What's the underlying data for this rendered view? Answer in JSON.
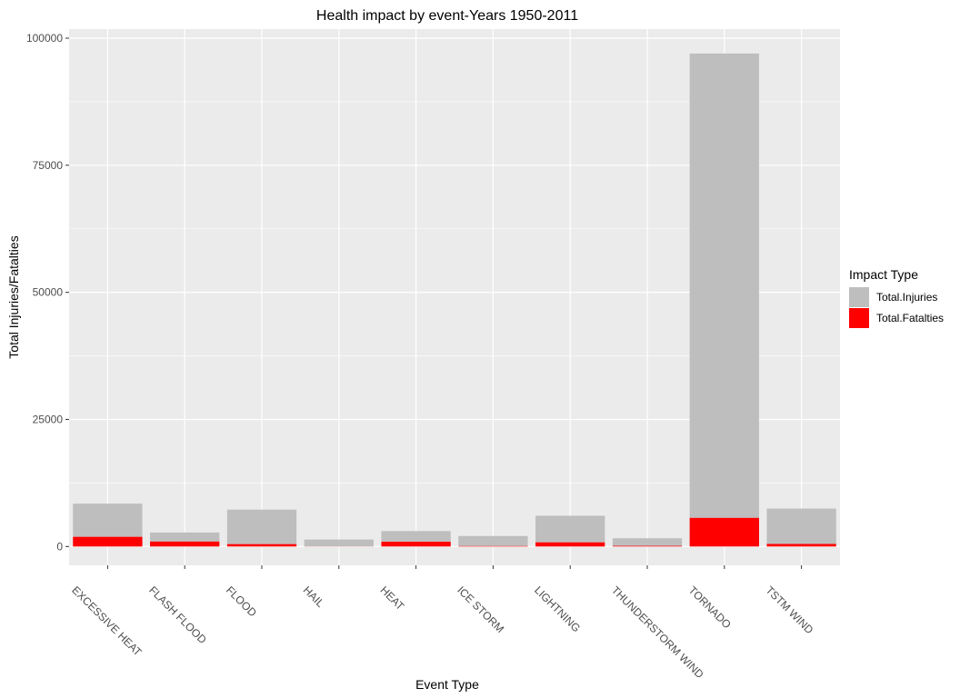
{
  "chart_data": {
    "type": "bar",
    "stacked": true,
    "title": "Health impact by event-Years 1950-2011",
    "xlabel": "Event Type",
    "ylabel": "Total Injuries/Fatalties",
    "ylim": [
      -3700,
      100000
    ],
    "yticks": [
      0,
      25000,
      50000,
      75000,
      100000
    ],
    "categories": [
      "EXCESSIVE HEAT",
      "FLASH FLOOD",
      "FLOOD",
      "HAIL",
      "HEAT",
      "ICE STORM",
      "LIGHTNING",
      "THUNDERSTORM WIND",
      "TORNADO",
      "TSTM WIND"
    ],
    "series": [
      {
        "name": "Total.Injuries",
        "color": "#bebebe",
        "values": [
          6525,
          1777,
          6789,
          1361,
          2100,
          1975,
          5230,
          1488,
          91346,
          6957
        ]
      },
      {
        "name": "Total.Fatalties",
        "color": "#ff0000",
        "values": [
          1903,
          978,
          470,
          15,
          937,
          89,
          816,
          133,
          5633,
          504
        ]
      }
    ],
    "legend": {
      "title": "Impact Type",
      "position": "right"
    },
    "grid": true,
    "background": "#ebebeb"
  }
}
